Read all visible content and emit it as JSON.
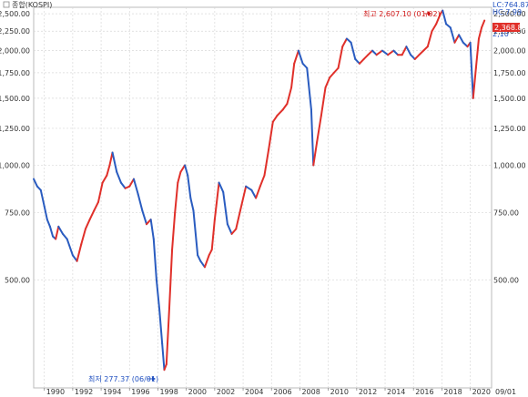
{
  "legend_label": "종합(KOSPI)",
  "right_info": {
    "lc": "LC:764.87",
    "hc": "HC:7.99",
    "current_price": "2,368.80",
    "prev_label": "2,10"
  },
  "x_end_label": "09/01",
  "annotations": {
    "high": "최고 2,607.10 (01/02)",
    "low": "최저 277.37 (06/01)"
  },
  "colors": {
    "up": "#e0302a",
    "down": "#2a5cc0",
    "grid": "#d8d8d8",
    "price_box": "#e0302a"
  },
  "chart_data": {
    "type": "line",
    "title": "",
    "series_name": "종합(KOSPI)",
    "scale": "log",
    "ylim": [
      260,
      2600
    ],
    "xlim": [
      1989.25,
      2021.5
    ],
    "y_ticks": [
      500,
      750,
      1000,
      1250,
      1500,
      1750,
      2000,
      2250,
      2500
    ],
    "y_tick_labels": [
      "500.00",
      "750.00",
      "1,000.00",
      "1,250.00",
      "1,500.00",
      "1,750.00",
      "2,000.00",
      "2,250.00",
      "2,500.00"
    ],
    "x_ticks": [
      1990,
      1992,
      1994,
      1996,
      1998,
      2000,
      2002,
      2004,
      2006,
      2008,
      2010,
      2012,
      2014,
      2016,
      2018,
      2020
    ],
    "x_tick_labels": [
      "1990",
      "1992",
      "1994",
      "1996",
      "1998",
      "2000",
      "2002",
      "2004",
      "2006",
      "2008",
      "2010",
      "2012",
      "2014",
      "2016",
      "2018",
      "2020"
    ],
    "grid": true,
    "x": [
      1989.25,
      1989.5,
      1989.75,
      1990.0,
      1990.2,
      1990.4,
      1990.6,
      1990.8,
      1991.0,
      1991.3,
      1991.6,
      1992.0,
      1992.3,
      1992.6,
      1992.9,
      1993.2,
      1993.5,
      1993.8,
      1994.1,
      1994.4,
      1994.6,
      1994.8,
      1995.1,
      1995.4,
      1995.7,
      1996.0,
      1996.3,
      1996.6,
      1996.9,
      1997.2,
      1997.5,
      1997.7,
      1997.9,
      1998.1,
      1998.3,
      1998.45,
      1998.6,
      1998.8,
      1999.0,
      1999.2,
      1999.4,
      1999.6,
      1999.9,
      2000.1,
      2000.3,
      2000.5,
      2000.8,
      2001.0,
      2001.3,
      2001.6,
      2001.8,
      2002.0,
      2002.3,
      2002.6,
      2002.9,
      2003.2,
      2003.5,
      2003.8,
      2004.2,
      2004.6,
      2004.9,
      2005.2,
      2005.5,
      2005.8,
      2006.1,
      2006.4,
      2006.8,
      2007.1,
      2007.4,
      2007.6,
      2007.9,
      2008.2,
      2008.5,
      2008.8,
      2008.95,
      2009.2,
      2009.5,
      2009.8,
      2010.1,
      2010.4,
      2010.7,
      2011.0,
      2011.3,
      2011.6,
      2011.9,
      2012.2,
      2012.5,
      2012.8,
      2013.1,
      2013.4,
      2013.8,
      2014.2,
      2014.6,
      2014.9,
      2015.2,
      2015.5,
      2015.8,
      2016.1,
      2016.4,
      2016.7,
      2017.0,
      2017.3,
      2017.6,
      2017.9,
      2018.05,
      2018.3,
      2018.6,
      2018.9,
      2019.2,
      2019.5,
      2019.8,
      2020.0,
      2020.2,
      2020.4,
      2020.6,
      2020.8,
      2021.0
    ],
    "values": [
      920,
      880,
      860,
      780,
      720,
      690,
      650,
      640,
      690,
      660,
      640,
      580,
      560,
      620,
      680,
      720,
      760,
      800,
      900,
      940,
      1000,
      1080,
      960,
      900,
      870,
      880,
      920,
      840,
      760,
      700,
      720,
      640,
      500,
      420,
      340,
      290,
      300,
      420,
      600,
      750,
      900,
      960,
      1000,
      940,
      820,
      760,
      580,
      560,
      540,
      580,
      600,
      720,
      900,
      850,
      700,
      660,
      680,
      760,
      880,
      860,
      820,
      880,
      940,
      1100,
      1300,
      1350,
      1400,
      1450,
      1600,
      1850,
      2000,
      1850,
      1800,
      1400,
      1000,
      1150,
      1350,
      1600,
      1700,
      1750,
      1800,
      2050,
      2150,
      2100,
      1900,
      1850,
      1900,
      1950,
      2000,
      1950,
      2000,
      1950,
      2000,
      1950,
      1950,
      2050,
      1950,
      1900,
      1950,
      2000,
      2050,
      2250,
      2350,
      2500,
      2550,
      2350,
      2300,
      2100,
      2200,
      2100,
      2050,
      2100,
      1500,
      1800,
      2150,
      2300,
      2400
    ]
  }
}
